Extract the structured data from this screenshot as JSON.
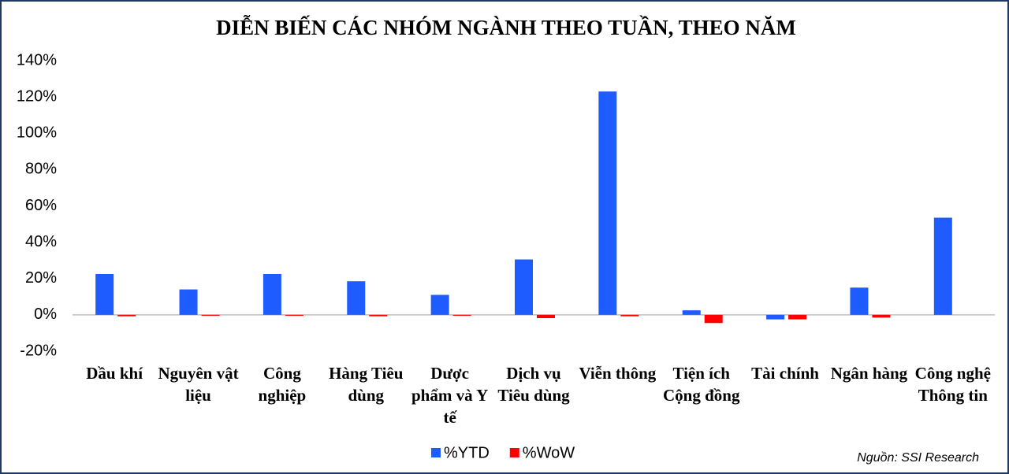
{
  "chart_data": {
    "type": "bar",
    "title": "DIỄN BIẾN CÁC NHÓM NGÀNH THEO TUẦN, THEO NĂM",
    "categories": [
      "Dầu khí",
      "Nguyên vật liệu",
      "Công nghiệp",
      "Hàng Tiêu dùng",
      "Dược phẩm và Y tế",
      "Dịch vụ Tiêu dùng",
      "Viễn thông",
      "Tiện ích Cộng đồng",
      "Tài chính",
      "Ngân hàng",
      "Công nghệ Thông tin"
    ],
    "series": [
      {
        "name": "%YTD",
        "color": "#1f5cff",
        "values": [
          22.5,
          14,
          22.5,
          18.5,
          11,
          30.5,
          123,
          2.5,
          -2.5,
          15,
          53.5
        ]
      },
      {
        "name": "%WoW",
        "color": "#ff0000",
        "values": [
          -0.8,
          -0.5,
          -0.5,
          -0.8,
          -0.5,
          -1.8,
          -0.8,
          -4.5,
          -2.5,
          -1.5,
          0
        ]
      }
    ],
    "ylim": [
      -20,
      140
    ],
    "yticks": [
      {
        "value": -20,
        "label": "-20%"
      },
      {
        "value": 0,
        "label": "0%"
      },
      {
        "value": 20,
        "label": "20%"
      },
      {
        "value": 40,
        "label": "40%"
      },
      {
        "value": 60,
        "label": "60%"
      },
      {
        "value": 80,
        "label": "80%"
      },
      {
        "value": 100,
        "label": "100%"
      },
      {
        "value": 120,
        "label": "120%"
      },
      {
        "value": 140,
        "label": "140%"
      }
    ],
    "legend": "bottom",
    "source": "Nguồn: SSI Research"
  }
}
